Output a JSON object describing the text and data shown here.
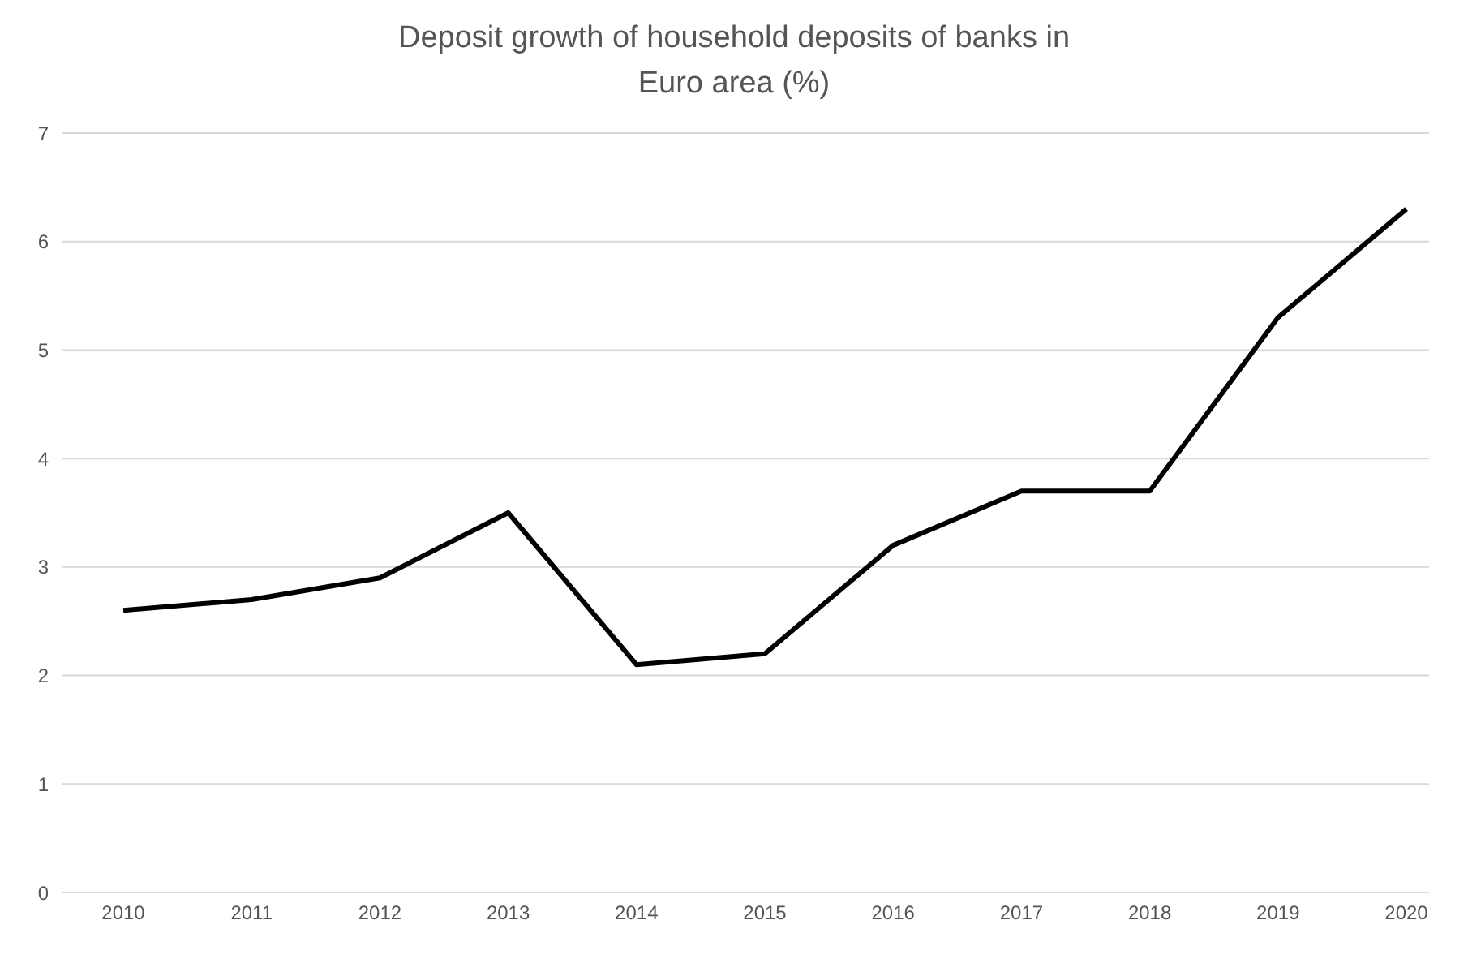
{
  "chart_data": {
    "type": "line",
    "title": "Deposit growth of household deposits of banks in Euro area (%)",
    "categories": [
      "2010",
      "2011",
      "2012",
      "2013",
      "2014",
      "2015",
      "2016",
      "2017",
      "2018",
      "2019",
      "2020"
    ],
    "series": [
      {
        "color": "#000000",
        "values": [
          2.6,
          2.7,
          2.9,
          3.5,
          2.1,
          2.2,
          3.2,
          3.7,
          3.7,
          5.3,
          6.3
        ]
      }
    ],
    "ylim": [
      0,
      7
    ],
    "yticks": [
      0,
      1,
      2,
      3,
      4,
      5,
      6,
      7
    ],
    "grid": "y",
    "marker": "none",
    "line_style": "solid"
  }
}
